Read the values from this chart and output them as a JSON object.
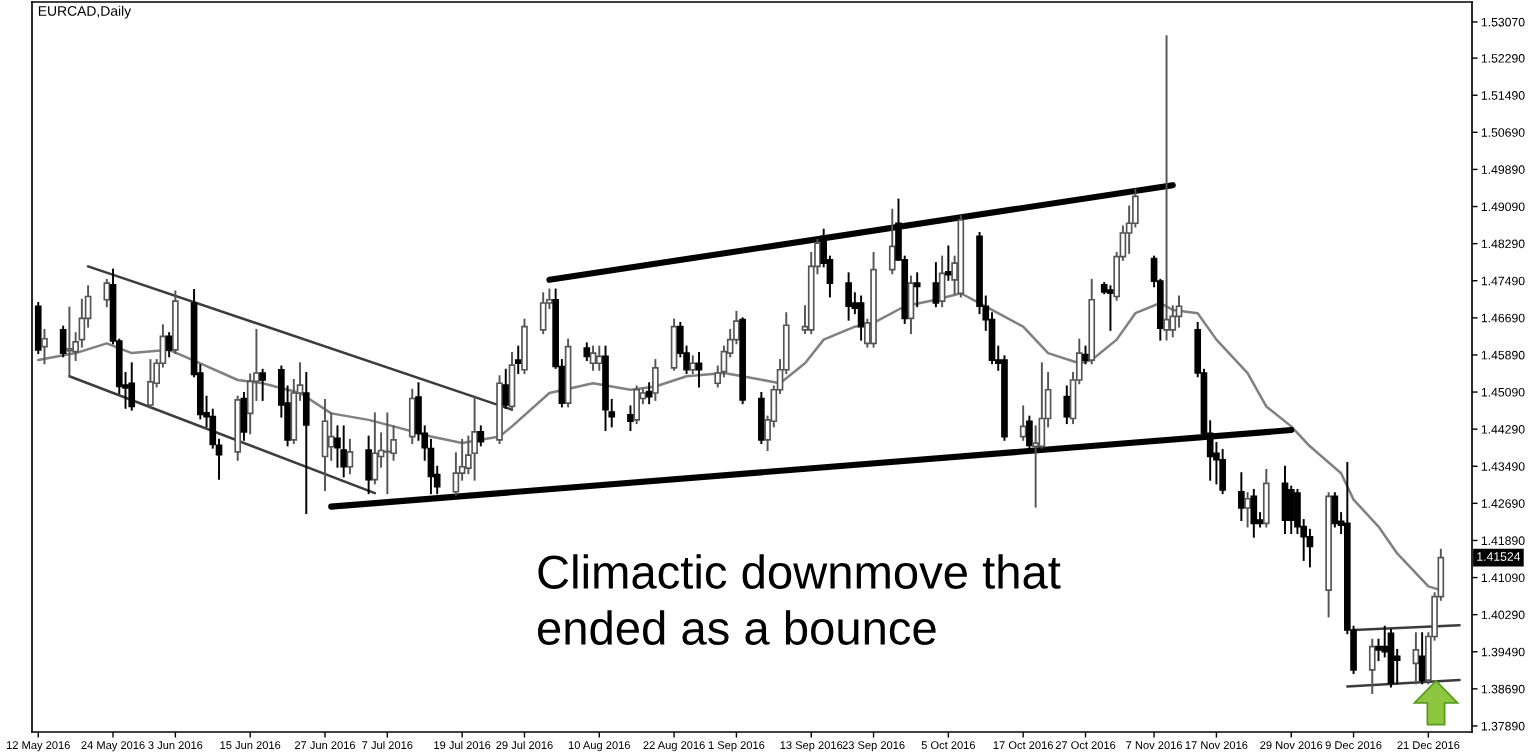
{
  "chart_data": {
    "type": "candlestick",
    "title": "EURCAD,Daily",
    "x": [
      "2016-05-12",
      "2016-05-13",
      "2016-05-16",
      "2016-05-17",
      "2016-05-18",
      "2016-05-19",
      "2016-05-20",
      "2016-05-23",
      "2016-05-24",
      "2016-05-25",
      "2016-05-26",
      "2016-05-27",
      "2016-05-30",
      "2016-05-31",
      "2016-06-01",
      "2016-06-02",
      "2016-06-03",
      "2016-06-06",
      "2016-06-07",
      "2016-06-08",
      "2016-06-09",
      "2016-06-10",
      "2016-06-13",
      "2016-06-14",
      "2016-06-15",
      "2016-06-16",
      "2016-06-17",
      "2016-06-20",
      "2016-06-21",
      "2016-06-22",
      "2016-06-23",
      "2016-06-24",
      "2016-06-27",
      "2016-06-28",
      "2016-06-29",
      "2016-06-30",
      "2016-07-01",
      "2016-07-04",
      "2016-07-05",
      "2016-07-06",
      "2016-07-07",
      "2016-07-08",
      "2016-07-11",
      "2016-07-12",
      "2016-07-13",
      "2016-07-14",
      "2016-07-15",
      "2016-07-18",
      "2016-07-19",
      "2016-07-20",
      "2016-07-21",
      "2016-07-22",
      "2016-07-25",
      "2016-07-26",
      "2016-07-27",
      "2016-07-28",
      "2016-07-29",
      "2016-08-01",
      "2016-08-02",
      "2016-08-03",
      "2016-08-04",
      "2016-08-05",
      "2016-08-08",
      "2016-08-09",
      "2016-08-10",
      "2016-08-11",
      "2016-08-12",
      "2016-08-15",
      "2016-08-16",
      "2016-08-17",
      "2016-08-18",
      "2016-08-19",
      "2016-08-22",
      "2016-08-23",
      "2016-08-24",
      "2016-08-25",
      "2016-08-26",
      "2016-08-29",
      "2016-08-30",
      "2016-08-31",
      "2016-09-01",
      "2016-09-02",
      "2016-09-05",
      "2016-09-06",
      "2016-09-07",
      "2016-09-08",
      "2016-09-09",
      "2016-09-12",
      "2016-09-13",
      "2016-09-14",
      "2016-09-15",
      "2016-09-16",
      "2016-09-19",
      "2016-09-20",
      "2016-09-21",
      "2016-09-22",
      "2016-09-23",
      "2016-09-26",
      "2016-09-27",
      "2016-09-28",
      "2016-09-29",
      "2016-09-30",
      "2016-10-03",
      "2016-10-04",
      "2016-10-05",
      "2016-10-06",
      "2016-10-07",
      "2016-10-10",
      "2016-10-11",
      "2016-10-12",
      "2016-10-13",
      "2016-10-14",
      "2016-10-17",
      "2016-10-18",
      "2016-10-19",
      "2016-10-20",
      "2016-10-21",
      "2016-10-24",
      "2016-10-25",
      "2016-10-26",
      "2016-10-27",
      "2016-10-28",
      "2016-10-30",
      "2016-10-31",
      "2016-11-01",
      "2016-11-02",
      "2016-11-03",
      "2016-11-04",
      "2016-11-07",
      "2016-11-08",
      "2016-11-09",
      "2016-11-10",
      "2016-11-11",
      "2016-11-14",
      "2016-11-15",
      "2016-11-16",
      "2016-11-17",
      "2016-11-18",
      "2016-11-21",
      "2016-11-22",
      "2016-11-23",
      "2016-11-24",
      "2016-11-25",
      "2016-11-28",
      "2016-11-29",
      "2016-11-30",
      "2016-12-01",
      "2016-12-02",
      "2016-12-05",
      "2016-12-06",
      "2016-12-07",
      "2016-12-08",
      "2016-12-09",
      "2016-12-12",
      "2016-12-13",
      "2016-12-14",
      "2016-12-15",
      "2016-12-16",
      "2016-12-19",
      "2016-12-20",
      "2016-12-21",
      "2016-12-22",
      "2016-12-23"
    ],
    "ohlc": [
      [
        1.4694,
        1.4701,
        1.4593,
        1.46
      ],
      [
        1.4607,
        1.4643,
        1.4571,
        1.4624
      ],
      [
        1.4643,
        1.465,
        1.4586,
        1.4593
      ],
      [
        1.4598,
        1.4691,
        1.4543,
        1.4602
      ],
      [
        1.4596,
        1.4636,
        1.4578,
        1.4617
      ],
      [
        1.4622,
        1.4708,
        1.4607,
        1.4668
      ],
      [
        1.4668,
        1.4737,
        1.465,
        1.4715
      ],
      [
        1.4708,
        1.4751,
        1.4694,
        1.4744
      ],
      [
        1.474,
        1.4773,
        1.4614,
        1.4619
      ],
      [
        1.4619,
        1.4622,
        1.4507,
        1.4521
      ],
      [
        1.4524,
        1.455,
        1.4475,
        1.4518
      ],
      [
        1.4528,
        1.4571,
        1.4471,
        1.4478
      ],
      [
        1.4481,
        1.4578,
        1.4475,
        1.4531
      ],
      [
        1.4528,
        1.4578,
        1.4521,
        1.4571
      ],
      [
        1.4571,
        1.4653,
        1.4564,
        1.4629
      ],
      [
        1.4629,
        1.4636,
        1.4586,
        1.46
      ],
      [
        1.46,
        1.4726,
        1.4593,
        1.4705
      ],
      [
        1.4701,
        1.4729,
        1.4543,
        1.4547
      ],
      [
        1.455,
        1.4567,
        1.4452,
        1.4461
      ],
      [
        1.4464,
        1.4499,
        1.4435,
        1.4456
      ],
      [
        1.4456,
        1.4471,
        1.4389,
        1.4396
      ],
      [
        1.4394,
        1.4406,
        1.4322,
        1.4374
      ],
      [
        1.438,
        1.4499,
        1.4363,
        1.4492
      ],
      [
        1.4495,
        1.4507,
        1.4406,
        1.4423
      ],
      [
        1.4463,
        1.4547,
        1.442,
        1.4532
      ],
      [
        1.4532,
        1.4643,
        1.4492,
        1.455
      ],
      [
        1.455,
        1.4557,
        1.4492,
        1.4535
      ],
      [
        1.4557,
        1.4564,
        1.4456,
        1.4481
      ],
      [
        1.4485,
        1.4521,
        1.4394,
        1.4406
      ],
      [
        1.4406,
        1.4535,
        1.4399,
        1.4507
      ],
      [
        1.4507,
        1.4571,
        1.4492,
        1.4524
      ],
      [
        1.4507,
        1.455,
        1.4248,
        1.4438
      ],
      [
        1.437,
        1.4492,
        1.4298,
        1.4446
      ],
      [
        1.4391,
        1.4463,
        1.4363,
        1.4413
      ],
      [
        1.4409,
        1.4435,
        1.4348,
        1.4389
      ],
      [
        1.4384,
        1.4435,
        1.4327,
        1.4348
      ],
      [
        1.4348,
        1.4406,
        1.4334,
        1.438
      ],
      [
        1.4384,
        1.4413,
        1.4291,
        1.432
      ],
      [
        1.432,
        1.4463,
        1.4312,
        1.4377
      ],
      [
        1.437,
        1.442,
        1.4348,
        1.4383
      ],
      [
        1.438,
        1.4463,
        1.4291,
        1.4381
      ],
      [
        1.4377,
        1.4435,
        1.4363,
        1.4406
      ],
      [
        1.4413,
        1.4514,
        1.4399,
        1.4495
      ],
      [
        1.4498,
        1.4528,
        1.4406,
        1.442
      ],
      [
        1.442,
        1.4435,
        1.4363,
        1.4389
      ],
      [
        1.4387,
        1.4406,
        1.4291,
        1.4327
      ],
      [
        1.4331,
        1.4348,
        1.4291,
        1.4305
      ],
      [
        1.4294,
        1.4377,
        1.4288,
        1.4334
      ],
      [
        1.4334,
        1.4406,
        1.432,
        1.4348
      ],
      [
        1.4345,
        1.4413,
        1.4334,
        1.4373
      ],
      [
        1.4377,
        1.4499,
        1.432,
        1.4423
      ],
      [
        1.4423,
        1.4435,
        1.4394,
        1.4402
      ],
      [
        1.4406,
        1.4543,
        1.4399,
        1.4528
      ],
      [
        1.4524,
        1.4557,
        1.4475,
        1.4481
      ],
      [
        1.4478,
        1.4593,
        1.4471,
        1.4567
      ],
      [
        1.4578,
        1.4607,
        1.455,
        1.4571
      ],
      [
        1.4557,
        1.4665,
        1.455,
        1.465
      ],
      [
        1.4643,
        1.4722,
        1.4636,
        1.4701
      ],
      [
        1.4701,
        1.473,
        1.469,
        1.4708
      ],
      [
        1.4708,
        1.473,
        1.4561,
        1.4564
      ],
      [
        1.4564,
        1.4578,
        1.4478,
        1.4485
      ],
      [
        1.4485,
        1.4622,
        1.4478,
        1.4607
      ],
      [
        1.4604,
        1.4614,
        1.4578,
        1.4586
      ],
      [
        1.4571,
        1.4607,
        1.4557,
        1.4593
      ],
      [
        1.4571,
        1.4607,
        1.4557,
        1.4586
      ],
      [
        1.4586,
        1.4607,
        1.4427,
        1.4471
      ],
      [
        1.4466,
        1.4492,
        1.4435,
        1.4456
      ],
      [
        1.446,
        1.4478,
        1.4427,
        1.4446
      ],
      [
        1.4449,
        1.4521,
        1.4442,
        1.4514
      ],
      [
        1.4495,
        1.4514,
        1.4485,
        1.4507
      ],
      [
        1.451,
        1.4528,
        1.4485,
        1.4499
      ],
      [
        1.4507,
        1.4578,
        1.4492,
        1.4561
      ],
      [
        1.4561,
        1.4665,
        1.4557,
        1.465
      ],
      [
        1.465,
        1.4658,
        1.4586,
        1.4593
      ],
      [
        1.4593,
        1.4607,
        1.455,
        1.4557
      ],
      [
        1.4557,
        1.4586,
        1.455,
        1.4571
      ],
      [
        1.4571,
        1.4593,
        1.4521,
        1.4557
      ],
      [
        1.4528,
        1.4564,
        1.4521,
        1.455
      ],
      [
        1.4553,
        1.4607,
        1.4543,
        1.4596
      ],
      [
        1.4593,
        1.4643,
        1.4586,
        1.4622
      ],
      [
        1.4622,
        1.4682,
        1.4614,
        1.4662
      ],
      [
        1.4665,
        1.4668,
        1.4485,
        1.4492
      ],
      [
        1.4495,
        1.4507,
        1.4399,
        1.4406
      ],
      [
        1.4406,
        1.4456,
        1.4384,
        1.4449
      ],
      [
        1.4446,
        1.4521,
        1.4435,
        1.4514
      ],
      [
        1.4514,
        1.4578,
        1.4507,
        1.4557
      ],
      [
        1.4557,
        1.4679,
        1.455,
        1.4653
      ],
      [
        1.4643,
        1.4694,
        1.4636,
        1.465
      ],
      [
        1.4643,
        1.4809,
        1.4636,
        1.478
      ],
      [
        1.478,
        1.4837,
        1.4765,
        1.483
      ],
      [
        1.4845,
        1.4859,
        1.478,
        1.4787
      ],
      [
        1.4794,
        1.4801,
        1.4715,
        1.4744
      ],
      [
        1.4744,
        1.4765,
        1.4665,
        1.4694
      ],
      [
        1.4701,
        1.4722,
        1.4679,
        1.469
      ],
      [
        1.4701,
        1.4715,
        1.4622,
        1.465
      ],
      [
        1.4614,
        1.4665,
        1.4607,
        1.4658
      ],
      [
        1.4614,
        1.4809,
        1.4607,
        1.4773
      ],
      [
        1.4773,
        1.4902,
        1.4765,
        1.4823
      ],
      [
        1.4873,
        1.4924,
        1.4794,
        1.4794
      ],
      [
        1.4794,
        1.4801,
        1.4658,
        1.4668
      ],
      [
        1.4668,
        1.4758,
        1.4636,
        1.4744
      ],
      [
        1.4744,
        1.4765,
        1.4694,
        1.4737
      ],
      [
        1.4744,
        1.4787,
        1.4694,
        1.4701
      ],
      [
        1.4705,
        1.4801,
        1.4694,
        1.4765
      ],
      [
        1.4768,
        1.4823,
        1.4751,
        1.4762
      ],
      [
        1.4751,
        1.4801,
        1.4722,
        1.4787
      ],
      [
        1.4722,
        1.4888,
        1.4715,
        1.488
      ],
      [
        1.4845,
        1.4852,
        1.4679,
        1.4694
      ],
      [
        1.4694,
        1.4715,
        1.4643,
        1.4665
      ],
      [
        1.4665,
        1.4679,
        1.4571,
        1.4578
      ],
      [
        1.4578,
        1.4607,
        1.4557,
        1.4571
      ],
      [
        1.4578,
        1.4586,
        1.4406,
        1.4413
      ],
      [
        1.4413,
        1.4478,
        1.4406,
        1.4435
      ],
      [
        1.4446,
        1.4456,
        1.4384,
        1.4394
      ],
      [
        1.4392,
        1.4435,
        1.4262,
        1.4399
      ],
      [
        1.4392,
        1.4571,
        1.4389,
        1.4452
      ],
      [
        1.4452,
        1.455,
        1.4435,
        1.4514
      ],
      [
        1.4499,
        1.4521,
        1.4442,
        1.4456
      ],
      [
        1.4452,
        1.455,
        1.4442,
        1.4535
      ],
      [
        1.4535,
        1.4622,
        1.4528,
        1.4593
      ],
      [
        1.459,
        1.4607,
        1.4571,
        1.4578
      ],
      [
        1.4578,
        1.4751,
        1.4571,
        1.4708
      ],
      [
        1.474,
        1.4744,
        1.4722,
        1.4725
      ],
      [
        1.4729,
        1.4737,
        1.4643,
        1.4722
      ],
      [
        1.4715,
        1.4809,
        1.4708,
        1.4801
      ],
      [
        1.4801,
        1.4866,
        1.4794,
        1.4852
      ],
      [
        1.4852,
        1.4909,
        1.4809,
        1.4873
      ],
      [
        1.4873,
        1.4945,
        1.4866,
        1.4931
      ],
      [
        1.4797,
        1.4801,
        1.4737,
        1.4748
      ],
      [
        1.4748,
        1.4751,
        1.4622,
        1.4647
      ],
      [
        1.4643,
        1.5276,
        1.4622,
        1.4665
      ],
      [
        1.4643,
        1.4694,
        1.4629,
        1.4672
      ],
      [
        1.4672,
        1.4715,
        1.465,
        1.4694
      ],
      [
        1.4643,
        1.4658,
        1.4543,
        1.455
      ],
      [
        1.455,
        1.4557,
        1.4413,
        1.442
      ],
      [
        1.442,
        1.4446,
        1.432,
        1.437
      ],
      [
        1.4377,
        1.4399,
        1.4312,
        1.4363
      ],
      [
        1.4363,
        1.4384,
        1.4291,
        1.4298
      ],
      [
        1.4294,
        1.4334,
        1.4233,
        1.4259
      ],
      [
        1.4259,
        1.4291,
        1.4219,
        1.4279
      ],
      [
        1.4284,
        1.4298,
        1.4197,
        1.4226
      ],
      [
        1.4233,
        1.4248,
        1.4219,
        1.4226
      ],
      [
        1.4226,
        1.4341,
        1.4219,
        1.4312
      ],
      [
        1.4312,
        1.4348,
        1.4205,
        1.4233
      ],
      [
        1.4298,
        1.4305,
        1.4205,
        1.4233
      ],
      [
        1.4291,
        1.4298,
        1.4205,
        1.4219
      ],
      [
        1.4219,
        1.4233,
        1.4147,
        1.4197
      ],
      [
        1.4197,
        1.4212,
        1.4133,
        1.4176
      ],
      [
        1.4082,
        1.4291,
        1.4025,
        1.4284
      ],
      [
        1.4284,
        1.4291,
        1.4219,
        1.4226
      ],
      [
        1.423,
        1.4248,
        1.4205,
        1.4222
      ],
      [
        1.4226,
        1.4356,
        1.3989,
        1.3996
      ],
      [
        1.3996,
        1.4003,
        1.3903,
        1.391
      ],
      [
        1.391,
        1.3975,
        1.386,
        1.396
      ],
      [
        1.396,
        1.3975,
        1.3931,
        1.3953
      ],
      [
        1.396,
        1.4003,
        1.3939,
        1.3949
      ],
      [
        1.3989,
        1.3996,
        1.3874,
        1.3881
      ],
      [
        1.3939,
        1.3953,
        1.3881,
        1.3931
      ],
      [
        1.3924,
        1.3989,
        1.3881,
        1.3953
      ],
      [
        1.3939,
        1.3989,
        1.3881,
        1.3888
      ],
      [
        1.3888,
        1.3989,
        1.3881,
        1.3982
      ],
      [
        1.3982,
        1.4075,
        1.3975,
        1.4068
      ],
      [
        1.4068,
        1.4169,
        1.4061,
        1.4152
      ]
    ],
    "series": [
      {
        "type": "line",
        "color": "#808080",
        "x": [
          "2016-05-12",
          "2016-05-18",
          "2016-05-23",
          "2016-05-27",
          "2016-06-02",
          "2016-06-07",
          "2016-06-13",
          "2016-06-17",
          "2016-06-23",
          "2016-06-28",
          "2016-07-04",
          "2016-07-08",
          "2016-07-14",
          "2016-07-19",
          "2016-07-25",
          "2016-07-27",
          "2016-08-02",
          "2016-08-09",
          "2016-08-15",
          "2016-08-19",
          "2016-08-24",
          "2016-08-30",
          "2016-09-02",
          "2016-09-08",
          "2016-09-12",
          "2016-09-15",
          "2016-09-20",
          "2016-09-23",
          "2016-09-28",
          "2016-10-03",
          "2016-10-07",
          "2016-10-12",
          "2016-10-17",
          "2016-10-21",
          "2016-10-26",
          "2016-10-28",
          "2016-11-01",
          "2016-11-04",
          "2016-11-08",
          "2016-11-10",
          "2016-11-14",
          "2016-11-17",
          "2016-11-22",
          "2016-11-25",
          "2016-11-29",
          "2016-12-02",
          "2016-12-07",
          "2016-12-09",
          "2016-12-13",
          "2016-12-16",
          "2016-12-21",
          "2016-12-23"
        ],
        "values": [
          1.4578,
          1.4593,
          1.4614,
          1.4593,
          1.46,
          1.4571,
          1.4535,
          1.4528,
          1.4507,
          1.4463,
          1.4449,
          1.4435,
          1.4413,
          1.4399,
          1.4413,
          1.4435,
          1.4507,
          1.4528,
          1.4514,
          1.4521,
          1.4543,
          1.455,
          1.4543,
          1.4528,
          1.4571,
          1.4622,
          1.465,
          1.4658,
          1.4694,
          1.4708,
          1.4722,
          1.4686,
          1.465,
          1.4593,
          1.4571,
          1.4578,
          1.4622,
          1.4679,
          1.4701,
          1.4686,
          1.4679,
          1.4622,
          1.455,
          1.4478,
          1.4435,
          1.4392,
          1.4334,
          1.4277,
          1.4219,
          1.4161,
          1.409,
          1.4082
        ]
      },
      {
        "type": "line",
        "color": "#3c3c3c",
        "x": [
          "2016-05-20",
          "2016-07-27"
        ],
        "values": [
          1.478,
          1.4471
        ]
      },
      {
        "type": "line",
        "color": "#3c3c3c",
        "x": [
          "2016-05-17",
          "2016-07-05"
        ],
        "values": [
          1.4543,
          1.4291
        ]
      },
      {
        "type": "line",
        "color": "#000000",
        "x": [
          "2016-06-28",
          "2016-11-29"
        ],
        "values": [
          1.4262,
          1.4427
        ]
      },
      {
        "type": "line",
        "color": "#000000",
        "x": [
          "2016-08-02",
          "2016-11-10"
        ],
        "values": [
          1.4751,
          1.4955
        ]
      },
      {
        "type": "line",
        "color": "#3c3c3c",
        "x": [
          "2016-12-09",
          "2016-12-26"
        ],
        "values": [
          1.3996,
          1.4006
        ]
      },
      {
        "type": "line",
        "color": "#3c3c3c",
        "x": [
          "2016-12-08",
          "2016-12-26"
        ],
        "values": [
          1.3874,
          1.3888
        ]
      }
    ],
    "annotations": [
      "Climactic downmove that\nended as a bounce",
      "1.41524"
    ],
    "xlim": [
      "2016-05-11",
      "2016-12-28"
    ],
    "xticks": [
      {
        "value": "2016-05-12",
        "label": "12 May 2016"
      },
      {
        "value": "2016-05-24",
        "label": "24 May 2016"
      },
      {
        "value": "2016-06-03",
        "label": "3 Jun 2016"
      },
      {
        "value": "2016-06-15",
        "label": "15 Jun 2016"
      },
      {
        "value": "2016-06-27",
        "label": "27 Jun 2016"
      },
      {
        "value": "2016-07-07",
        "label": "7 Jul 2016"
      },
      {
        "value": "2016-07-19",
        "label": "19 Jul 2016"
      },
      {
        "value": "2016-07-29",
        "label": "29 Jul 2016"
      },
      {
        "value": "2016-08-10",
        "label": "10 Aug 2016"
      },
      {
        "value": "2016-08-22",
        "label": "22 Aug 2016"
      },
      {
        "value": "2016-09-01",
        "label": "1 Sep 2016"
      },
      {
        "value": "2016-09-13",
        "label": "13 Sep 2016"
      },
      {
        "value": "2016-09-23",
        "label": "23 Sep 2016"
      },
      {
        "value": "2016-10-05",
        "label": "5 Oct 2016"
      },
      {
        "value": "2016-10-17",
        "label": "17 Oct 2016"
      },
      {
        "value": "2016-10-27",
        "label": "27 Oct 2016"
      },
      {
        "value": "2016-11-07",
        "label": "7 Nov 2016"
      },
      {
        "value": "2016-11-17",
        "label": "17 Nov 2016"
      },
      {
        "value": "2016-11-29",
        "label": "29 Nov 2016"
      },
      {
        "value": "2016-12-09",
        "label": "9 Dec 2016"
      },
      {
        "value": "2016-12-21",
        "label": "21 Dec 2016"
      }
    ],
    "ylim": [
      1.3776,
      1.535
    ],
    "yticks": [
      {
        "value": 1.5307,
        "label": "1.53070"
      },
      {
        "value": 1.5229,
        "label": "1.52290"
      },
      {
        "value": 1.5149,
        "label": "1.51490"
      },
      {
        "value": 1.5069,
        "label": "1.50690"
      },
      {
        "value": 1.4989,
        "label": "1.49890"
      },
      {
        "value": 1.4909,
        "label": "1.49090"
      },
      {
        "value": 1.4829,
        "label": "1.48290"
      },
      {
        "value": 1.4749,
        "label": "1.47490"
      },
      {
        "value": 1.4669,
        "label": "1.46690"
      },
      {
        "value": 1.4589,
        "label": "1.45890"
      },
      {
        "value": 1.4509,
        "label": "1.45090"
      },
      {
        "value": 1.4429,
        "label": "1.44290"
      },
      {
        "value": 1.4349,
        "label": "1.43490"
      },
      {
        "value": 1.4269,
        "label": "1.42690"
      },
      {
        "value": 1.4189,
        "label": "1.41890"
      },
      {
        "value": 1.4109,
        "label": "1.41090"
      },
      {
        "value": 1.4029,
        "label": "1.40290"
      },
      {
        "value": 1.3949,
        "label": "1.39490"
      },
      {
        "value": 1.3869,
        "label": "1.38690"
      },
      {
        "value": 1.3789,
        "label": "1.37890"
      }
    ]
  }
}
